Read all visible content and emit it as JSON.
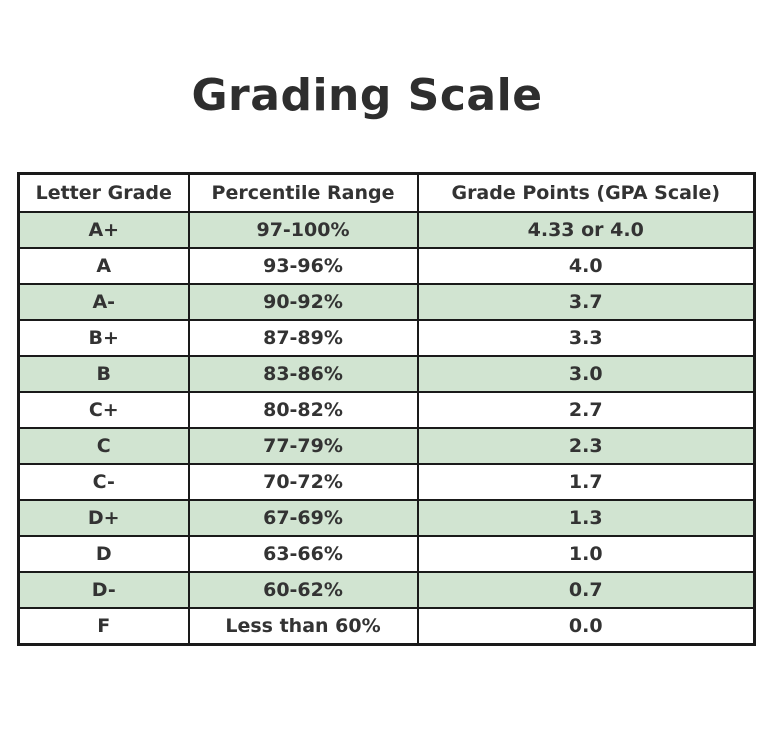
{
  "title": "Grading Scale",
  "table": {
    "headers": [
      "Letter Grade",
      "Percentile Range",
      "Grade Points (GPA Scale)"
    ],
    "rows": [
      [
        "A+",
        "97-100%",
        "4.33 or 4.0"
      ],
      [
        "A",
        "93-96%",
        "4.0"
      ],
      [
        "A-",
        "90-92%",
        "3.7"
      ],
      [
        "B+",
        "87-89%",
        "3.3"
      ],
      [
        "B",
        "83-86%",
        "3.0"
      ],
      [
        "C+",
        "80-82%",
        "2.7"
      ],
      [
        "C",
        "77-79%",
        "2.3"
      ],
      [
        "C-",
        "70-72%",
        "1.7"
      ],
      [
        "D+",
        "67-69%",
        "1.3"
      ],
      [
        "D",
        "63-66%",
        "1.0"
      ],
      [
        "D-",
        "60-62%",
        "0.7"
      ],
      [
        "F",
        "Less than 60%",
        "0.0"
      ]
    ]
  },
  "colors": {
    "shaded_row": "#d1e4d1",
    "plain_row": "#ffffff",
    "border": "#1a1a1a",
    "text": "#333333"
  }
}
